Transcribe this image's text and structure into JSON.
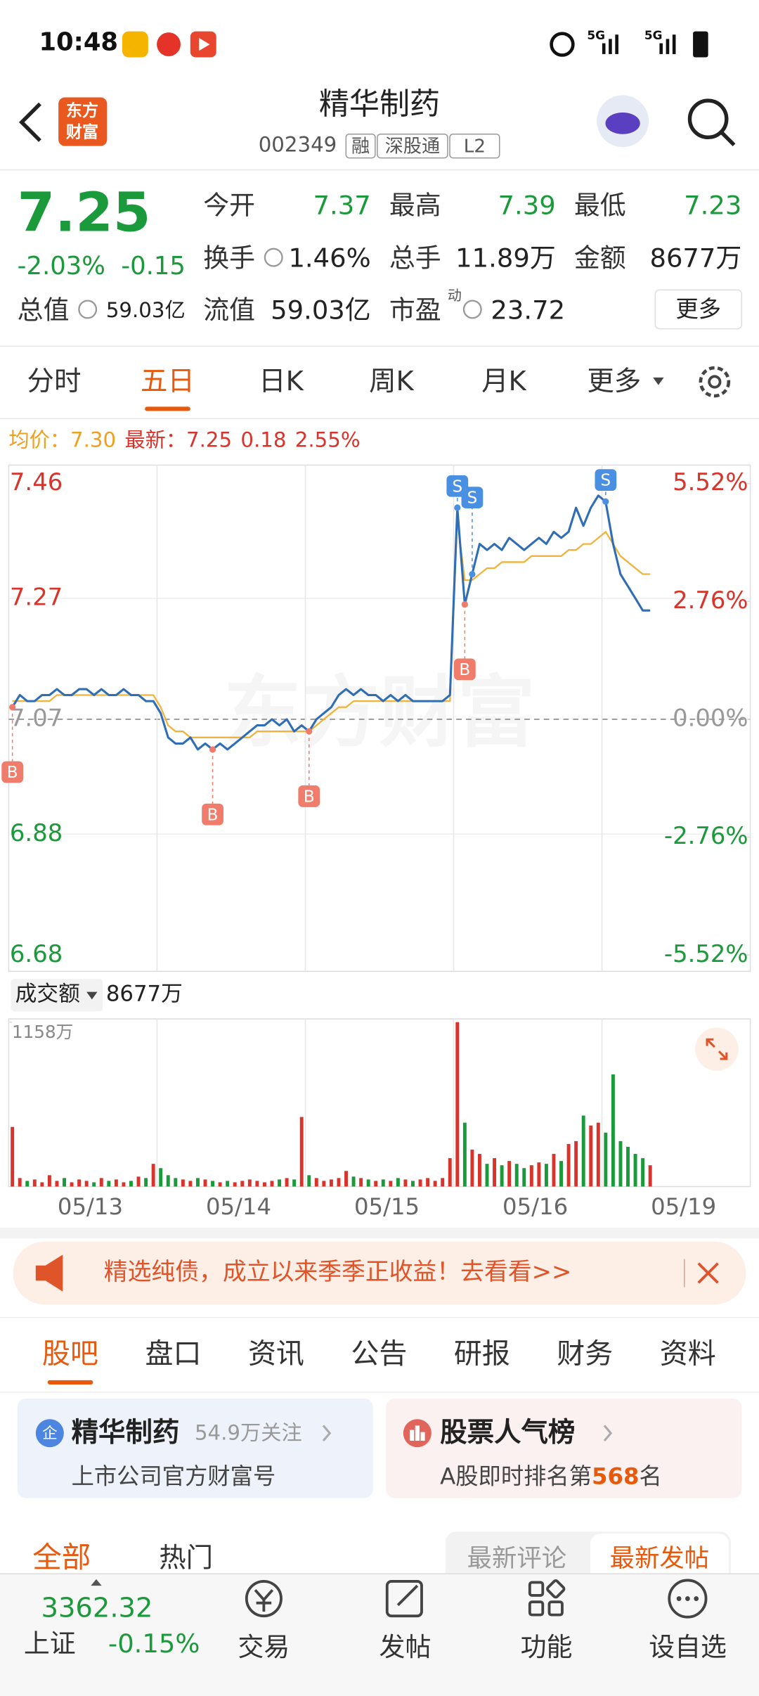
{
  "status_bar": {
    "time": "10:48",
    "signal_1": "5G",
    "signal_2": "5G"
  },
  "header": {
    "logo": [
      "东方",
      "财富"
    ],
    "title": "精华制药",
    "code": "002349",
    "tags": [
      "融",
      "深股通",
      "L2"
    ]
  },
  "quote": {
    "price": "7.25",
    "change_pct": "-2.03%",
    "change": "-0.15",
    "fields": [
      {
        "label": "今开",
        "value": "7.37",
        "color": "#1a9a3a"
      },
      {
        "label": "最高",
        "value": "7.39",
        "color": "#1a9a3a"
      },
      {
        "label": "最低",
        "value": "7.23",
        "color": "#1a9a3a"
      },
      {
        "label": "换手",
        "value": "1.46%"
      },
      {
        "label": "总手",
        "value": "11.89万"
      },
      {
        "label": "金额",
        "value": "8677万"
      },
      {
        "label": "总值",
        "value": "59.03亿"
      },
      {
        "label": "流值",
        "value": "59.03亿"
      },
      {
        "label": "市盈",
        "superscript": "动",
        "value": "23.72"
      }
    ],
    "more": "更多"
  },
  "chart_tabs": {
    "items": [
      "分时",
      "五日",
      "日K",
      "周K",
      "月K",
      "更多"
    ],
    "active": 1
  },
  "chart_data": {
    "type": "line",
    "avg_label": "均价：",
    "avg_price": "7.30",
    "latest_label": "最新：",
    "latest_price": "7.25",
    "latest_change": "0.18",
    "latest_change_pct": "2.55%",
    "watermark": "东方财富",
    "price_color": "#2f6db5",
    "avg_color": "#f0b43c",
    "ylim": [
      6.68,
      7.46
    ],
    "yticks": [
      6.68,
      6.88,
      7.07,
      7.27,
      7.46
    ],
    "y2lim": [
      -5.52,
      5.52
    ],
    "y2ticks": [
      {
        "value": -5.52,
        "label": "-5.52%"
      },
      {
        "value": -2.76,
        "label": "-2.76%"
      },
      {
        "value": 0,
        "label": "0.00%"
      },
      {
        "value": 2.76,
        "label": "2.76%"
      },
      {
        "value": 5.52,
        "label": "5.52%"
      }
    ],
    "volume_label": "成交额",
    "volume_total": "8677万",
    "volume_ylim": [
      0,
      1158
    ],
    "volume_yticks": [
      {
        "value": 1158,
        "label": "1158万"
      }
    ],
    "days": [
      {
        "date": "05/13",
        "price": [
          7.09,
          7.11,
          7.1,
          7.1,
          7.11,
          7.11,
          7.12,
          7.11,
          7.11,
          7.12,
          7.12,
          7.11,
          7.12,
          7.11,
          7.11,
          7.12,
          7.11,
          7.11,
          7.1,
          7.1
        ],
        "avg": [
          7.1,
          7.1,
          7.1,
          7.1,
          7.1,
          7.1,
          7.11,
          7.11,
          7.11,
          7.11,
          7.11,
          7.11,
          7.11,
          7.11,
          7.11,
          7.11,
          7.11,
          7.11,
          7.11,
          7.11
        ],
        "volume": [
          420,
          60,
          40,
          50,
          30,
          80,
          40,
          60,
          30,
          50,
          40,
          30,
          60,
          40,
          50,
          30,
          40,
          70,
          60,
          160
        ],
        "markers": [
          {
            "label": "B",
            "index": 0
          }
        ]
      },
      {
        "date": "05/14",
        "price": [
          7.08,
          7.04,
          7.03,
          7.03,
          7.04,
          7.02,
          7.03,
          7.02,
          7.03,
          7.02,
          7.03,
          7.04,
          7.05,
          7.06,
          7.06,
          7.07,
          7.06,
          7.07,
          7.05,
          7.06
        ],
        "avg": [
          7.09,
          7.06,
          7.05,
          7.05,
          7.04,
          7.04,
          7.04,
          7.04,
          7.04,
          7.04,
          7.04,
          7.04,
          7.04,
          7.05,
          7.05,
          7.05,
          7.05,
          7.05,
          7.05,
          7.05
        ],
        "volume": [
          130,
          80,
          60,
          50,
          40,
          60,
          50,
          40,
          30,
          40,
          30,
          40,
          50,
          40,
          30,
          40,
          50,
          60,
          50,
          490
        ],
        "markers": [
          {
            "label": "B",
            "index": 7
          }
        ]
      },
      {
        "date": "05/15",
        "price": [
          7.05,
          7.07,
          7.08,
          7.09,
          7.11,
          7.12,
          7.11,
          7.12,
          7.11,
          7.11,
          7.1,
          7.11,
          7.1,
          7.11,
          7.1,
          7.1,
          7.1,
          7.1,
          7.1,
          7.11
        ],
        "avg": [
          7.05,
          7.06,
          7.07,
          7.08,
          7.09,
          7.09,
          7.1,
          7.1,
          7.1,
          7.1,
          7.1,
          7.1,
          7.1,
          7.1,
          7.1,
          7.1,
          7.1,
          7.1,
          7.1,
          7.1
        ],
        "volume": [
          80,
          60,
          40,
          50,
          60,
          110,
          70,
          60,
          50,
          40,
          50,
          40,
          60,
          50,
          40,
          50,
          60,
          40,
          60,
          200
        ],
        "markers": [
          {
            "label": "B",
            "index": 0
          }
        ]
      },
      {
        "date": "05/16",
        "price": [
          7.42,
          7.26,
          7.31,
          7.36,
          7.35,
          7.36,
          7.35,
          7.37,
          7.36,
          7.35,
          7.36,
          7.37,
          7.36,
          7.38,
          7.37,
          7.38,
          7.42,
          7.39,
          7.42,
          7.44
        ],
        "avg": [
          7.4,
          7.3,
          7.3,
          7.31,
          7.32,
          7.32,
          7.33,
          7.33,
          7.33,
          7.33,
          7.34,
          7.34,
          7.34,
          7.34,
          7.34,
          7.35,
          7.35,
          7.36,
          7.36,
          7.37
        ],
        "volume": [
          1158,
          450,
          260,
          230,
          160,
          200,
          150,
          180,
          160,
          130,
          150,
          170,
          160,
          230,
          180,
          300,
          320,
          500,
          430,
          450
        ],
        "markers": [
          {
            "label": "S",
            "index": 0
          },
          {
            "label": "B",
            "index": 1
          },
          {
            "label": "S",
            "index": 2
          }
        ]
      },
      {
        "date": "05/19",
        "price": [
          7.43,
          7.36,
          7.31,
          7.29,
          7.27,
          7.25,
          7.25
        ],
        "avg": [
          7.38,
          7.36,
          7.34,
          7.33,
          7.32,
          7.31,
          7.31
        ],
        "volume": [
          380,
          790,
          320,
          280,
          230,
          200,
          150
        ],
        "markers": [
          {
            "label": "S",
            "index": 0
          }
        ]
      }
    ]
  },
  "ad": {
    "text": "精选纯债，成立以来季季正收益！去看看>>"
  },
  "section_tabs": {
    "items": [
      "股吧",
      "盘口",
      "资讯",
      "公告",
      "研报",
      "财务",
      "资料"
    ],
    "active": 0
  },
  "cards": [
    {
      "badge": "企",
      "title": "精华制药",
      "meta": "54.9万关注",
      "subtitle": "上市公司官方财富号"
    },
    {
      "title": "股票人气榜",
      "subtitle_prefix": "A股即时排名第",
      "rank": "568",
      "subtitle_suffix": "名"
    }
  ],
  "filters": {
    "left": [
      "全部",
      "热门"
    ],
    "right": [
      "最新评论",
      "最新发帖"
    ]
  },
  "bottom_bar": {
    "index_value": "3362.32",
    "index_name": "上证",
    "index_change": "-0.15%",
    "items": [
      "交易",
      "发帖",
      "功能",
      "设自选"
    ]
  }
}
